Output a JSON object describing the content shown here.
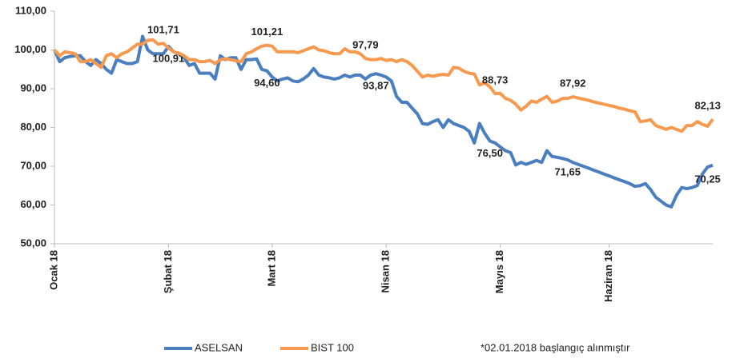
{
  "chart_data": {
    "type": "line",
    "categories": [
      "Ocak 18",
      null,
      null,
      null,
      null,
      null,
      null,
      null,
      null,
      null,
      null,
      null,
      null,
      null,
      null,
      null,
      null,
      null,
      null,
      null,
      null,
      null,
      "Şubat 18",
      null,
      null,
      null,
      null,
      null,
      null,
      null,
      null,
      null,
      null,
      null,
      null,
      null,
      null,
      null,
      null,
      null,
      null,
      null,
      "Mart 18",
      null,
      null,
      null,
      null,
      null,
      null,
      null,
      null,
      null,
      null,
      null,
      null,
      null,
      null,
      null,
      null,
      null,
      null,
      null,
      null,
      null,
      "Nisan 18",
      null,
      null,
      null,
      null,
      null,
      null,
      null,
      null,
      null,
      null,
      null,
      null,
      null,
      null,
      null,
      null,
      null,
      null,
      null,
      null,
      null,
      "Mayıs 18",
      null,
      null,
      null,
      null,
      null,
      null,
      null,
      null,
      null,
      null,
      null,
      null,
      null,
      null,
      null,
      null,
      null,
      null,
      null,
      null,
      "Haziran 18",
      null,
      null,
      null,
      null,
      null,
      null,
      null,
      null,
      null,
      null,
      null,
      null,
      null,
      null,
      null,
      null,
      null,
      null,
      null,
      null
    ],
    "series": [
      {
        "name": "ASELSAN",
        "color": "#4a7ebf",
        "values": [
          100,
          97,
          98,
          98.3,
          98.5,
          98.5,
          97,
          96,
          97.5,
          96.5,
          95,
          94,
          97.5,
          97,
          96.5,
          96.5,
          97,
          103.5,
          100,
          99,
          99,
          99,
          100.91,
          99.5,
          99,
          98,
          96,
          96.5,
          94,
          94,
          94,
          92.5,
          98.5,
          97.5,
          98,
          98,
          95,
          97.5,
          97.5,
          97.7,
          95,
          94.6,
          93,
          92,
          92.5,
          92.8,
          92,
          91.8,
          92.5,
          93.5,
          95.2,
          93.5,
          93,
          92.8,
          92.5,
          92.8,
          93.5,
          93,
          93.5,
          93.5,
          92.5,
          93.5,
          93.87,
          93.5,
          93,
          92,
          88,
          86.5,
          86.5,
          85,
          83.5,
          81,
          80.8,
          81.5,
          82,
          80,
          82,
          81,
          80.5,
          80,
          79,
          76,
          81,
          78.5,
          76.5,
          76,
          75,
          74,
          73.5,
          70.3,
          71,
          70.5,
          71,
          71.5,
          71,
          74,
          72.5,
          72.3,
          72,
          71.65,
          71,
          70.5,
          70,
          69.5,
          69,
          68.5,
          68,
          67.5,
          67,
          66.5,
          66,
          65.5,
          64.8,
          65,
          65.5,
          64,
          62,
          61,
          60,
          59.5,
          62.5,
          64.5,
          64.2,
          64.5,
          65,
          68,
          69.8,
          70.25
        ],
        "value_labels": [
          null,
          null,
          null,
          null,
          null,
          null,
          null,
          null,
          null,
          null,
          null,
          null,
          null,
          null,
          null,
          null,
          null,
          null,
          null,
          null,
          null,
          null,
          "100,91",
          null,
          null,
          null,
          null,
          null,
          null,
          null,
          null,
          null,
          null,
          null,
          null,
          null,
          null,
          null,
          null,
          null,
          null,
          "94,60",
          null,
          null,
          null,
          null,
          null,
          null,
          null,
          null,
          null,
          null,
          null,
          null,
          null,
          null,
          null,
          null,
          null,
          null,
          null,
          null,
          "93,87",
          null,
          null,
          null,
          null,
          null,
          null,
          null,
          null,
          null,
          null,
          null,
          null,
          null,
          null,
          null,
          null,
          null,
          null,
          null,
          null,
          null,
          "76,50",
          null,
          null,
          null,
          null,
          null,
          null,
          null,
          null,
          null,
          null,
          null,
          null,
          null,
          null,
          "71,65",
          null,
          null,
          null,
          null,
          null,
          null,
          null,
          null,
          null,
          null,
          null,
          null,
          null,
          null,
          null,
          null,
          null,
          null,
          null,
          null,
          null,
          null,
          null,
          null,
          null,
          null,
          "70,25"
        ]
      },
      {
        "name": "BIST 100",
        "color": "#f79a4f",
        "values": [
          100,
          98.5,
          99.5,
          99.3,
          99,
          97,
          97,
          97.5,
          96.5,
          95.5,
          98.5,
          99,
          98,
          99,
          99.5,
          100.5,
          101.5,
          101.5,
          102.5,
          102.6,
          101.5,
          101.71,
          100.5,
          99.5,
          99.2,
          98.5,
          97.5,
          97.5,
          97,
          97,
          97.3,
          96.5,
          97.5,
          97.7,
          97.5,
          97.2,
          97,
          99,
          99.5,
          100.3,
          101,
          101.21,
          101,
          99.5,
          99.5,
          99.5,
          99.5,
          99.3,
          99.8,
          100.3,
          100.8,
          100,
          99.8,
          99.3,
          99,
          99,
          100.3,
          99.5,
          99.5,
          99,
          97.79,
          97.5,
          97.5,
          97.8,
          97.3,
          97.5,
          97,
          97.5,
          97,
          96,
          94.5,
          93,
          93.5,
          93.2,
          93.5,
          93.7,
          93.5,
          95.5,
          95.3,
          94.5,
          94,
          93.8,
          91,
          91.5,
          90.5,
          88.73,
          88.8,
          87.5,
          87,
          86,
          84.5,
          85.5,
          86.8,
          86.5,
          87.3,
          88,
          86.5,
          86.8,
          87.5,
          87.5,
          87.92,
          87.6,
          87.3,
          87,
          86.6,
          86.3,
          86,
          85.7,
          85.4,
          85,
          84.7,
          84.3,
          84,
          81.5,
          81.7,
          82,
          80.5,
          80,
          79.5,
          80,
          79.5,
          79,
          80.5,
          80.5,
          81.5,
          80.8,
          80.3,
          82.13
        ],
        "value_labels": [
          null,
          null,
          null,
          null,
          null,
          null,
          null,
          null,
          null,
          null,
          null,
          null,
          null,
          null,
          null,
          null,
          null,
          null,
          null,
          null,
          null,
          "101,71",
          null,
          null,
          null,
          null,
          null,
          null,
          null,
          null,
          null,
          null,
          null,
          null,
          null,
          null,
          null,
          null,
          null,
          null,
          null,
          "101,21",
          null,
          null,
          null,
          null,
          null,
          null,
          null,
          null,
          null,
          null,
          null,
          null,
          null,
          null,
          null,
          null,
          null,
          null,
          "97,79",
          null,
          null,
          null,
          null,
          null,
          null,
          null,
          null,
          null,
          null,
          null,
          null,
          null,
          null,
          null,
          null,
          null,
          null,
          null,
          null,
          null,
          null,
          null,
          null,
          "88,73",
          null,
          null,
          null,
          null,
          null,
          null,
          null,
          null,
          null,
          null,
          null,
          null,
          null,
          null,
          "87,92",
          null,
          null,
          null,
          null,
          null,
          null,
          null,
          null,
          null,
          null,
          null,
          null,
          null,
          null,
          null,
          null,
          null,
          null,
          null,
          null,
          null,
          null,
          null,
          null,
          null,
          null,
          "82,13"
        ]
      }
    ],
    "ylim": [
      50,
      110
    ],
    "yticks": [
      {
        "value": 50,
        "label": "50,00"
      },
      {
        "value": 60,
        "label": "60,00"
      },
      {
        "value": 70,
        "label": "70,00"
      },
      {
        "value": 80,
        "label": "80,00"
      },
      {
        "value": 90,
        "label": "90,00"
      },
      {
        "value": 100,
        "label": "100,00"
      },
      {
        "value": 110,
        "label": "110,00"
      }
    ],
    "grid": false,
    "legend": "bottom",
    "note": "*02.01.2018 başlangıç alınmıştır"
  }
}
